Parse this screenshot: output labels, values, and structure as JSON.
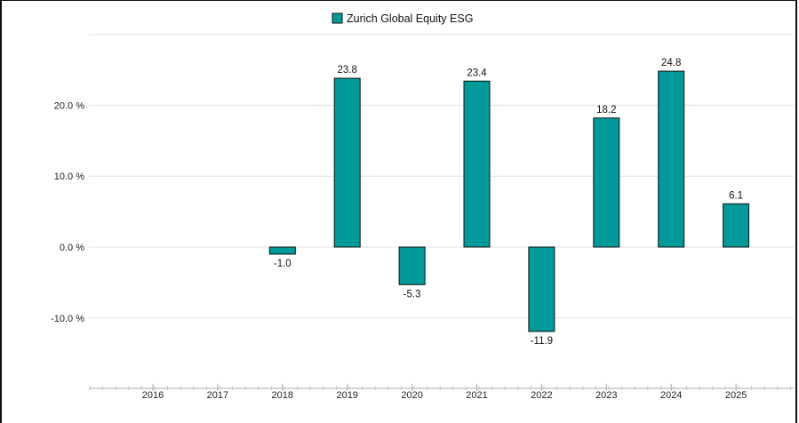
{
  "chart_data": {
    "type": "bar",
    "categories": [
      "2016",
      "2017",
      "2018",
      "2019",
      "2020",
      "2021",
      "2022",
      "2023",
      "2024",
      "2025"
    ],
    "series": [
      {
        "name": "Zurich Global Equity ESG",
        "values": [
          null,
          null,
          -1.0,
          23.8,
          -5.3,
          23.4,
          -11.9,
          18.2,
          24.8,
          6.1
        ],
        "data_labels": [
          "",
          "",
          "-1.0",
          "23.8",
          "-5.3",
          "23.4",
          "-11.9",
          "18.2",
          "24.8",
          "6.1"
        ],
        "color": "#009a9a"
      }
    ],
    "y_ticks": [
      20,
      10,
      0,
      -10
    ],
    "y_tick_labels": [
      "20.0 %",
      "10.0 %",
      "0.0 %",
      "-10.0 %"
    ],
    "ylim": [
      -18.6,
      30
    ],
    "grid": true,
    "legend_position": "top-center",
    "title": "",
    "xlabel": "",
    "ylabel": ""
  },
  "colors": {
    "bar": "#009a9a",
    "bar_stroke": "#111111",
    "grid": "#e3e3e3",
    "axis": "#c8c8c8"
  }
}
